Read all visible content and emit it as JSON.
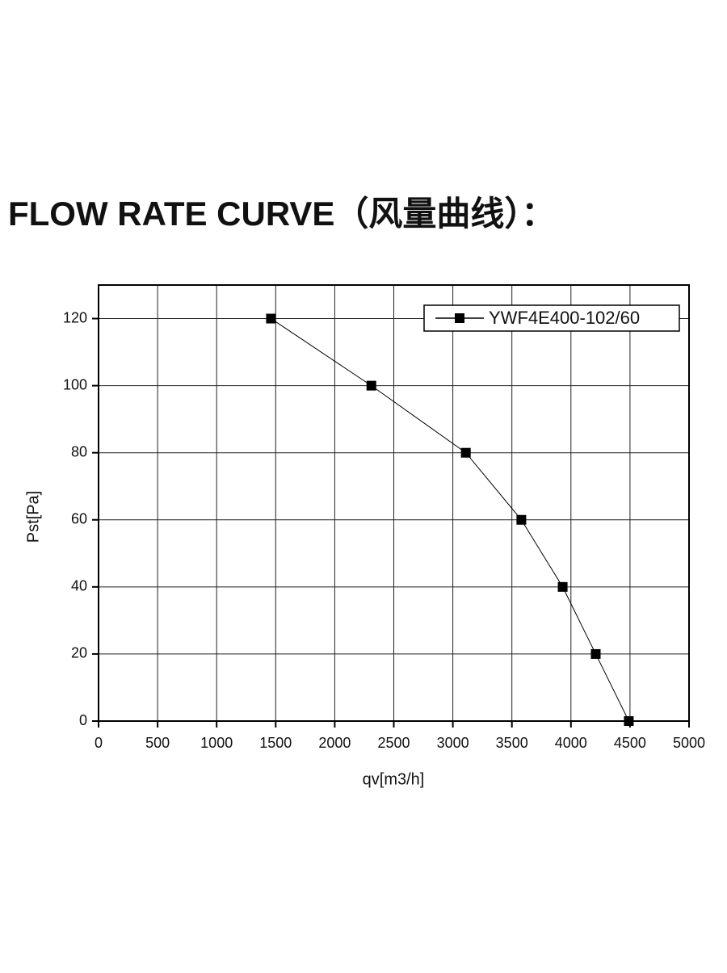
{
  "chart_data": {
    "type": "line",
    "title": "FLOW RATE CURVE（风量曲线）：",
    "x_label": "qv[m3/h]",
    "y_label": "Pst[Pa]",
    "x": [
      1460,
      2310,
      3110,
      3580,
      3930,
      4210,
      4490
    ],
    "series": [
      {
        "name": "YWF4E400-102/60",
        "color": "#000000",
        "values": [
          120,
          100,
          80,
          60,
          40,
          20,
          0
        ]
      }
    ],
    "xlim": [
      0,
      5000
    ],
    "xticks": [
      0,
      500,
      1000,
      1500,
      2000,
      2500,
      3000,
      3500,
      4000,
      4500,
      5000
    ],
    "ylim": [
      0,
      130
    ],
    "yticks": [
      0,
      20,
      40,
      60,
      80,
      100,
      120
    ],
    "grid": true,
    "legend": "upper right"
  }
}
